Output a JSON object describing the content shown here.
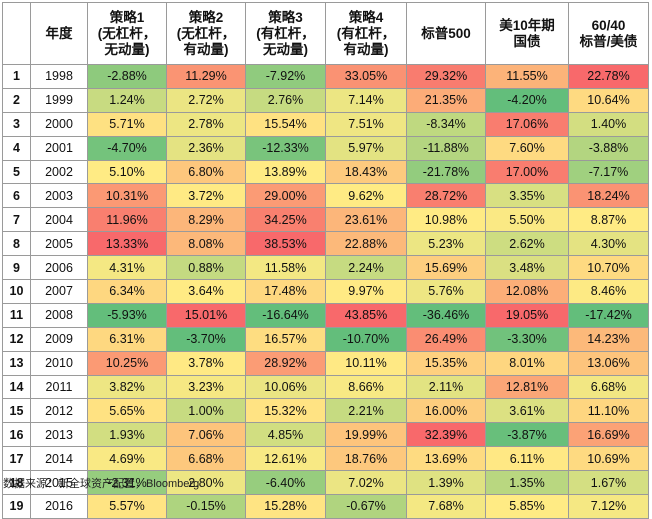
{
  "chart_data": {
    "type": "heatmap",
    "columns": [
      "",
      "年度",
      "策略1\n(无杠杆，\n无动量)",
      "策略2\n(无杠杆，\n有动量)",
      "策略3\n(有杠杆，\n无动量)",
      "策略4\n(有杠杆，\n有动量)",
      "标普500",
      "美10年期\n国债",
      "60/40\n标普/美债"
    ],
    "rows": [
      {
        "idx": "1",
        "year": "1998",
        "values": [
          "-2.88%",
          "11.29%",
          "-7.92%",
          "33.05%",
          "29.32%",
          "11.55%",
          "22.78%"
        ]
      },
      {
        "idx": "2",
        "year": "1999",
        "values": [
          "1.24%",
          "2.72%",
          "2.76%",
          "7.14%",
          "21.35%",
          "-4.20%",
          "10.64%"
        ]
      },
      {
        "idx": "3",
        "year": "2000",
        "values": [
          "5.71%",
          "2.78%",
          "15.54%",
          "7.51%",
          "-8.34%",
          "17.06%",
          "1.40%"
        ]
      },
      {
        "idx": "4",
        "year": "2001",
        "values": [
          "-4.70%",
          "2.36%",
          "-12.33%",
          "5.97%",
          "-11.88%",
          "7.60%",
          "-3.88%"
        ]
      },
      {
        "idx": "5",
        "year": "2002",
        "values": [
          "5.10%",
          "6.80%",
          "13.89%",
          "18.43%",
          "-21.78%",
          "17.00%",
          "-7.17%"
        ]
      },
      {
        "idx": "6",
        "year": "2003",
        "values": [
          "10.31%",
          "3.72%",
          "29.00%",
          "9.62%",
          "28.72%",
          "3.35%",
          "18.24%"
        ]
      },
      {
        "idx": "7",
        "year": "2004",
        "values": [
          "11.96%",
          "8.29%",
          "34.25%",
          "23.61%",
          "10.98%",
          "5.50%",
          "8.87%"
        ]
      },
      {
        "idx": "8",
        "year": "2005",
        "values": [
          "13.33%",
          "8.08%",
          "38.53%",
          "22.88%",
          "5.23%",
          "2.62%",
          "4.30%"
        ]
      },
      {
        "idx": "9",
        "year": "2006",
        "values": [
          "4.31%",
          "0.88%",
          "11.58%",
          "2.24%",
          "15.69%",
          "3.48%",
          "10.70%"
        ]
      },
      {
        "idx": "10",
        "year": "2007",
        "values": [
          "6.34%",
          "3.64%",
          "17.48%",
          "9.97%",
          "5.76%",
          "12.08%",
          "8.46%"
        ]
      },
      {
        "idx": "11",
        "year": "2008",
        "values": [
          "-5.93%",
          "15.01%",
          "-16.64%",
          "43.85%",
          "-36.46%",
          "19.05%",
          "-17.42%"
        ]
      },
      {
        "idx": "12",
        "year": "2009",
        "values": [
          "6.31%",
          "-3.70%",
          "16.57%",
          "-10.70%",
          "26.49%",
          "-3.30%",
          "14.23%"
        ]
      },
      {
        "idx": "13",
        "year": "2010",
        "values": [
          "10.25%",
          "3.78%",
          "28.92%",
          "10.11%",
          "15.35%",
          "8.01%",
          "13.06%"
        ]
      },
      {
        "idx": "14",
        "year": "2011",
        "values": [
          "3.82%",
          "3.23%",
          "10.06%",
          "8.66%",
          "2.11%",
          "12.81%",
          "6.68%"
        ]
      },
      {
        "idx": "15",
        "year": "2012",
        "values": [
          "5.65%",
          "1.00%",
          "15.32%",
          "2.21%",
          "16.00%",
          "3.61%",
          "11.10%"
        ]
      },
      {
        "idx": "16",
        "year": "2013",
        "values": [
          "1.93%",
          "7.06%",
          "4.85%",
          "19.99%",
          "32.39%",
          "-3.87%",
          "16.69%"
        ]
      },
      {
        "idx": "17",
        "year": "2014",
        "values": [
          "4.69%",
          "6.68%",
          "12.61%",
          "18.76%",
          "13.69%",
          "6.11%",
          "10.69%"
        ]
      },
      {
        "idx": "18",
        "year": "2015",
        "values": [
          "-2.31%",
          "2.80%",
          "-6.40%",
          "7.02%",
          "1.39%",
          "1.35%",
          "1.67%"
        ]
      },
      {
        "idx": "19",
        "year": "2016",
        "values": [
          "5.57%",
          "-0.15%",
          "15.28%",
          "-0.67%",
          "7.68%",
          "5.85%",
          "7.12%"
        ]
      }
    ],
    "colors": {
      "high": "#f8696b",
      "mid": "#ffeb84",
      "low": "#63be7b"
    }
  },
  "source": "数据来源：新全球资产配置，Bloomberg"
}
